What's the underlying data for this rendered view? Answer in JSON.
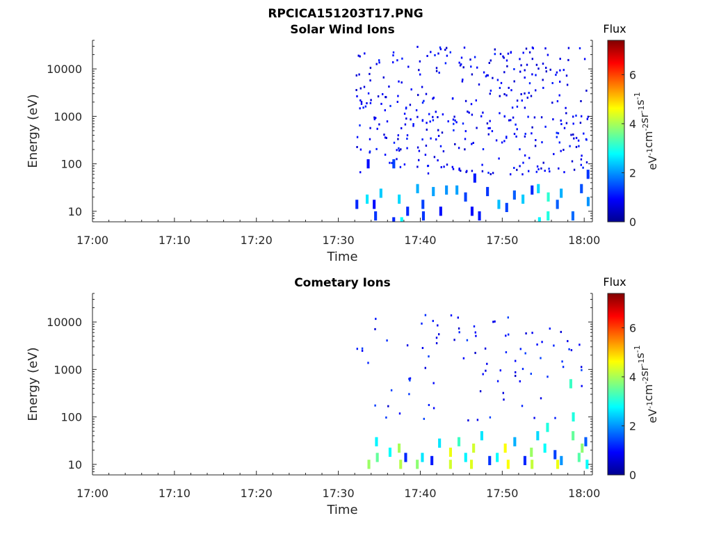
{
  "figure_title": "RPCICA151203T17.PNG",
  "colors": {
    "background": "#ffffff",
    "axis": "#262626",
    "colormap": "jet"
  },
  "chart_data": [
    {
      "type": "heatmap",
      "title": "Solar Wind Ions",
      "xlabel": "Time",
      "ylabel": "Energy (eV)",
      "y_scale": "log",
      "xlim": [
        "17:00",
        "18:01"
      ],
      "ylim": [
        6,
        40000
      ],
      "x_ticks": [
        "17:00",
        "17:10",
        "17:20",
        "17:30",
        "17:40",
        "17:50",
        "18:00"
      ],
      "y_ticks": [
        "10",
        "100",
        "1000",
        "10000"
      ],
      "colorbar": {
        "label": "Flux",
        "unit": "eV-1cm-2sr-1s-1",
        "range": [
          0,
          7.4
        ],
        "ticks": [
          "0",
          "2",
          "4",
          "6"
        ]
      },
      "grid": false,
      "data_start": "17:32",
      "points": [
        [
          "17:32",
          14,
          1.2
        ],
        [
          "17:33",
          18,
          2.6
        ],
        [
          "17:33",
          100,
          1.0
        ],
        [
          "17:34",
          14,
          1.0
        ],
        [
          "17:34",
          8,
          1.3
        ],
        [
          "17:35",
          24,
          2.4
        ],
        [
          "17:36",
          100,
          1.4
        ],
        [
          "17:36",
          6,
          1.2
        ],
        [
          "17:37",
          18,
          2.5
        ],
        [
          "17:37",
          6,
          2.8
        ],
        [
          "17:38",
          10,
          1.2
        ],
        [
          "17:39",
          30,
          2.2
        ],
        [
          "17:40",
          8,
          1.3
        ],
        [
          "17:40",
          14,
          1.4
        ],
        [
          "17:41",
          26,
          2.1
        ],
        [
          "17:42",
          10,
          1.0
        ],
        [
          "17:43",
          28,
          2.0
        ],
        [
          "17:44",
          28,
          2.1
        ],
        [
          "17:45",
          20,
          1.4
        ],
        [
          "17:46",
          10,
          1.0
        ],
        [
          "17:46",
          50,
          1.1
        ],
        [
          "17:47",
          8,
          1.1
        ],
        [
          "17:48",
          26,
          1.3
        ],
        [
          "17:49",
          14,
          2.3
        ],
        [
          "17:50",
          12,
          1.4
        ],
        [
          "17:51",
          22,
          1.6
        ],
        [
          "17:52",
          18,
          2.4
        ],
        [
          "17:53",
          28,
          1.2
        ],
        [
          "17:54",
          6,
          2.7
        ],
        [
          "17:54",
          30,
          2.5
        ],
        [
          "17:55",
          8,
          3.0
        ],
        [
          "17:55",
          20,
          3.1
        ],
        [
          "17:56",
          14,
          1.6
        ],
        [
          "17:57",
          24,
          2.2
        ],
        [
          "17:58",
          8,
          1.7
        ],
        [
          "17:59",
          30,
          1.5
        ],
        [
          "18:00",
          16,
          2.0
        ],
        [
          "18:00",
          60,
          1.3
        ]
      ],
      "scatter_count": 380,
      "scatter_range": [
        60,
        30000
      ],
      "scatter_flux": [
        0.5,
        1.2
      ]
    },
    {
      "type": "heatmap",
      "title": "Cometary Ions",
      "xlabel": "Time",
      "ylabel": "Energy (eV)",
      "y_scale": "log",
      "xlim": [
        "17:00",
        "18:01"
      ],
      "ylim": [
        6,
        40000
      ],
      "x_ticks": [
        "17:00",
        "17:10",
        "17:20",
        "17:30",
        "17:40",
        "17:50",
        "18:00"
      ],
      "y_ticks": [
        "10",
        "100",
        "1000",
        "10000"
      ],
      "colorbar": {
        "label": "Flux",
        "unit": "eV-1cm-2sr-1s-1",
        "range": [
          0,
          7.4
        ],
        "ticks": [
          "0",
          "2",
          "4",
          "6"
        ]
      },
      "grid": false,
      "data_start": "17:32",
      "points": [
        [
          "17:33",
          10,
          3.9
        ],
        [
          "17:34",
          14,
          3.5
        ],
        [
          "17:34",
          30,
          2.7
        ],
        [
          "17:36",
          18,
          2.8
        ],
        [
          "17:37",
          10,
          4.1
        ],
        [
          "17:37",
          22,
          4.0
        ],
        [
          "17:38",
          14,
          1.2
        ],
        [
          "17:39",
          10,
          3.8
        ],
        [
          "17:40",
          14,
          2.6
        ],
        [
          "17:41",
          12,
          1.1
        ],
        [
          "17:42",
          28,
          2.6
        ],
        [
          "17:43",
          10,
          4.3
        ],
        [
          "17:43",
          18,
          4.5
        ],
        [
          "17:44",
          30,
          3.2
        ],
        [
          "17:45",
          14,
          2.7
        ],
        [
          "17:46",
          10,
          4.4
        ],
        [
          "17:46",
          22,
          4.3
        ],
        [
          "17:47",
          40,
          2.6
        ],
        [
          "17:48",
          12,
          1.3
        ],
        [
          "17:49",
          14,
          2.8
        ],
        [
          "17:50",
          10,
          4.6
        ],
        [
          "17:50",
          22,
          4.6
        ],
        [
          "17:51",
          30,
          2.2
        ],
        [
          "17:52",
          12,
          1.2
        ],
        [
          "17:53",
          10,
          4.2
        ],
        [
          "17:53",
          18,
          3.9
        ],
        [
          "17:54",
          40,
          2.5
        ],
        [
          "17:55",
          22,
          2.8
        ],
        [
          "17:55",
          60,
          3.0
        ],
        [
          "17:56",
          10,
          4.5
        ],
        [
          "17:56",
          16,
          1.4
        ],
        [
          "17:57",
          12,
          2.0
        ],
        [
          "17:58",
          40,
          3.5
        ],
        [
          "17:58",
          100,
          3.0
        ],
        [
          "17:58",
          500,
          3.2
        ],
        [
          "17:59",
          14,
          3.4
        ],
        [
          "17:59",
          22,
          3.8
        ],
        [
          "18:00",
          10,
          2.8
        ],
        [
          "18:00",
          30,
          1.6
        ]
      ],
      "scatter_count": 90,
      "scatter_range": [
        80,
        15000
      ],
      "scatter_flux": [
        0.5,
        1.4
      ]
    }
  ]
}
